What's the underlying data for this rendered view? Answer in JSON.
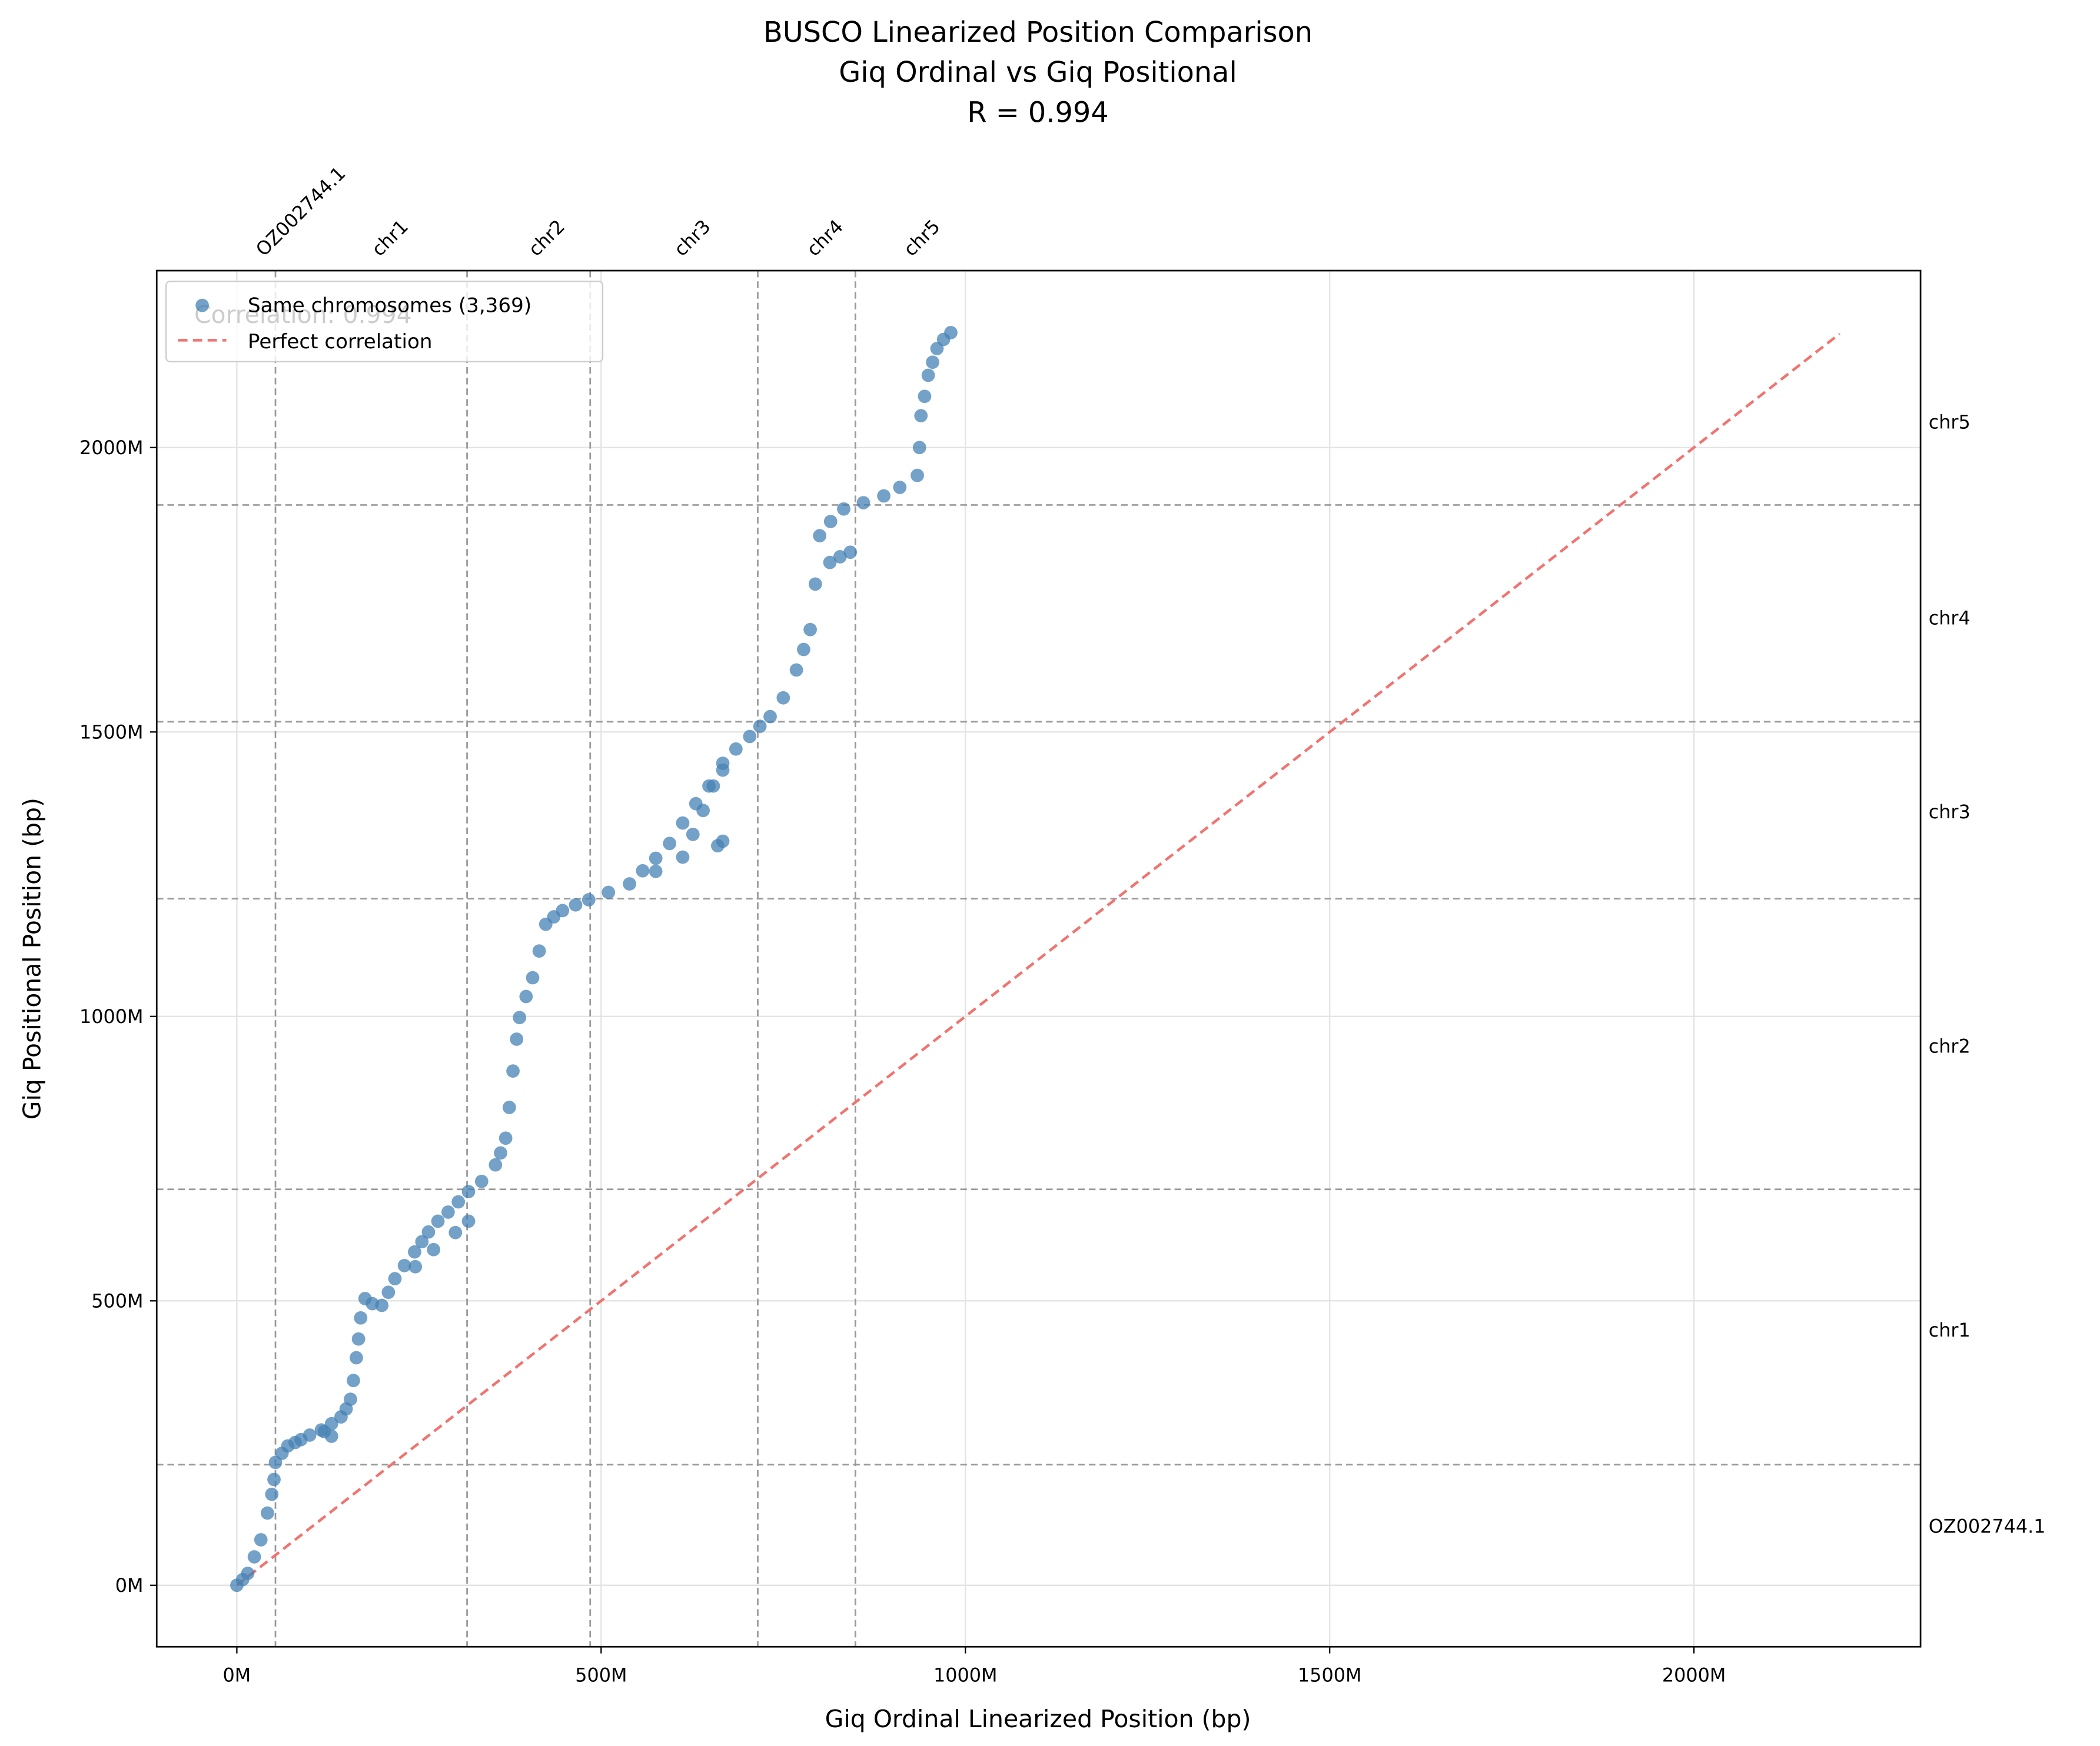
{
  "chart_data": {
    "type": "scatter",
    "title": "BUSCO Linearized Position Comparison",
    "subtitle": "Giq Ordinal vs Giq Positional",
    "annotation": "R = 0.994",
    "background_annotation": "Correlation: 0.994",
    "x_label": "Giq Ordinal Linearized Position (bp)",
    "y_label": "Giq Positional Position (bp)",
    "xlim": [
      -110000000,
      2311000000
    ],
    "ylim": [
      -108000000,
      2311000000
    ],
    "xticks": [
      {
        "value": 0,
        "label": "0M"
      },
      {
        "value": 500000000,
        "label": "500M"
      },
      {
        "value": 1000000000,
        "label": "1000M"
      },
      {
        "value": 1500000000,
        "label": "1500M"
      },
      {
        "value": 2000000000,
        "label": "2000M"
      }
    ],
    "yticks": [
      {
        "value": 0,
        "label": "0M"
      },
      {
        "value": 500000000,
        "label": "500M"
      },
      {
        "value": 1000000000,
        "label": "1000M"
      },
      {
        "value": 1500000000,
        "label": "1500M"
      },
      {
        "value": 2000000000,
        "label": "2000M"
      }
    ],
    "grid": true,
    "legend": "upper left",
    "x_boundaries": [
      53000000,
      316000000,
      485000000,
      715000000,
      849000000
    ],
    "y_boundaries": [
      212000000,
      696000000,
      1207000000,
      1518000000,
      1899000000
    ],
    "x_region_labels": [
      {
        "label": "OZ002744.1",
        "position": 26000000
      },
      {
        "label": "chr1",
        "position": 185000000
      },
      {
        "label": "chr2",
        "position": 400000000
      },
      {
        "label": "chr3",
        "position": 600000000
      },
      {
        "label": "chr4",
        "position": 782000000
      },
      {
        "label": "chr5",
        "position": 915000000
      }
    ],
    "y_region_labels": [
      {
        "label": "OZ002744.1",
        "position": 104000000
      },
      {
        "label": "chr1",
        "position": 449000000
      },
      {
        "label": "chr2",
        "position": 948000000
      },
      {
        "label": "chr3",
        "position": 1360000000
      },
      {
        "label": "chr4",
        "position": 1701000000
      },
      {
        "label": "chr5",
        "position": 2045000000
      }
    ],
    "series": [
      {
        "name": "Same chromosomes (3,369)",
        "color": "#4682b4",
        "x": [
          0,
          8000000,
          15000000,
          24000000,
          33000000,
          42000000,
          48000000,
          51000000,
          53000000,
          62000000,
          70000000,
          80000000,
          88000000,
          100000000,
          116000000,
          130000000,
          143000000,
          150000000,
          156000000,
          160000000,
          164000000,
          167000000,
          170000000,
          176000000,
          186000000,
          199000000,
          208000000,
          217000000,
          230000000,
          244000000,
          254000000,
          263000000,
          276000000,
          290000000,
          304000000,
          318000000,
          336000000,
          355000000,
          362000000,
          369000000,
          374000000,
          379000000,
          384000000,
          388000000,
          397000000,
          406000000,
          415000000,
          424000000,
          435000000,
          447000000,
          465000000,
          483000000,
          510000000,
          539000000,
          575000000,
          612000000,
          626000000,
          640000000,
          654000000,
          667000000,
          685000000,
          704000000,
          718000000,
          732000000,
          750000000,
          768000000,
          778000000,
          787000000,
          794000000,
          800000000,
          815000000,
          833000000,
          860000000,
          888000000,
          910000000,
          934000000,
          937000000,
          939000000,
          944000000,
          949000000,
          955000000,
          961000000,
          970000000,
          980000000,
          557000000,
          575000000,
          594000000,
          612000000,
          630000000,
          648000000,
          667000000,
          667000000,
          660000000,
          814000000,
          828000000,
          842000000,
          245000000,
          270000000,
          300000000,
          318000000,
          120000000,
          130000000
        ],
        "values": [
          0,
          10000000,
          21000000,
          50000000,
          80000000,
          127000000,
          160000000,
          186000000,
          216000000,
          232000000,
          245000000,
          251000000,
          256000000,
          264000000,
          273000000,
          284000000,
          296000000,
          310000000,
          327000000,
          360000000,
          400000000,
          433000000,
          470000000,
          504000000,
          495000000,
          492000000,
          515000000,
          539000000,
          562000000,
          586000000,
          604000000,
          621000000,
          640000000,
          656000000,
          674000000,
          692000000,
          710000000,
          739000000,
          760000000,
          786000000,
          840000000,
          904000000,
          960000000,
          998000000,
          1035000000,
          1068000000,
          1115000000,
          1162000000,
          1175000000,
          1186000000,
          1196000000,
          1205000000,
          1218000000,
          1233000000,
          1255000000,
          1280000000,
          1320000000,
          1362000000,
          1405000000,
          1445000000,
          1470000000,
          1492000000,
          1510000000,
          1527000000,
          1560000000,
          1609000000,
          1645000000,
          1680000000,
          1760000000,
          1845000000,
          1870000000,
          1892000000,
          1903000000,
          1915000000,
          1930000000,
          1951000000,
          2000000000,
          2056000000,
          2090000000,
          2127000000,
          2150000000,
          2174000000,
          2190000000,
          2202000000,
          1256000000,
          1278000000,
          1304000000,
          1340000000,
          1374000000,
          1405000000,
          1433000000,
          1308000000,
          1300000000,
          1798000000,
          1808000000,
          1816000000,
          560000000,
          590000000,
          620000000,
          640000000,
          270000000,
          262000000
        ]
      }
    ],
    "reference_line": {
      "name": "Perfect correlation",
      "color": "#f07470",
      "x": [
        0,
        2200000000
      ],
      "values": [
        0,
        2200000000
      ]
    }
  }
}
